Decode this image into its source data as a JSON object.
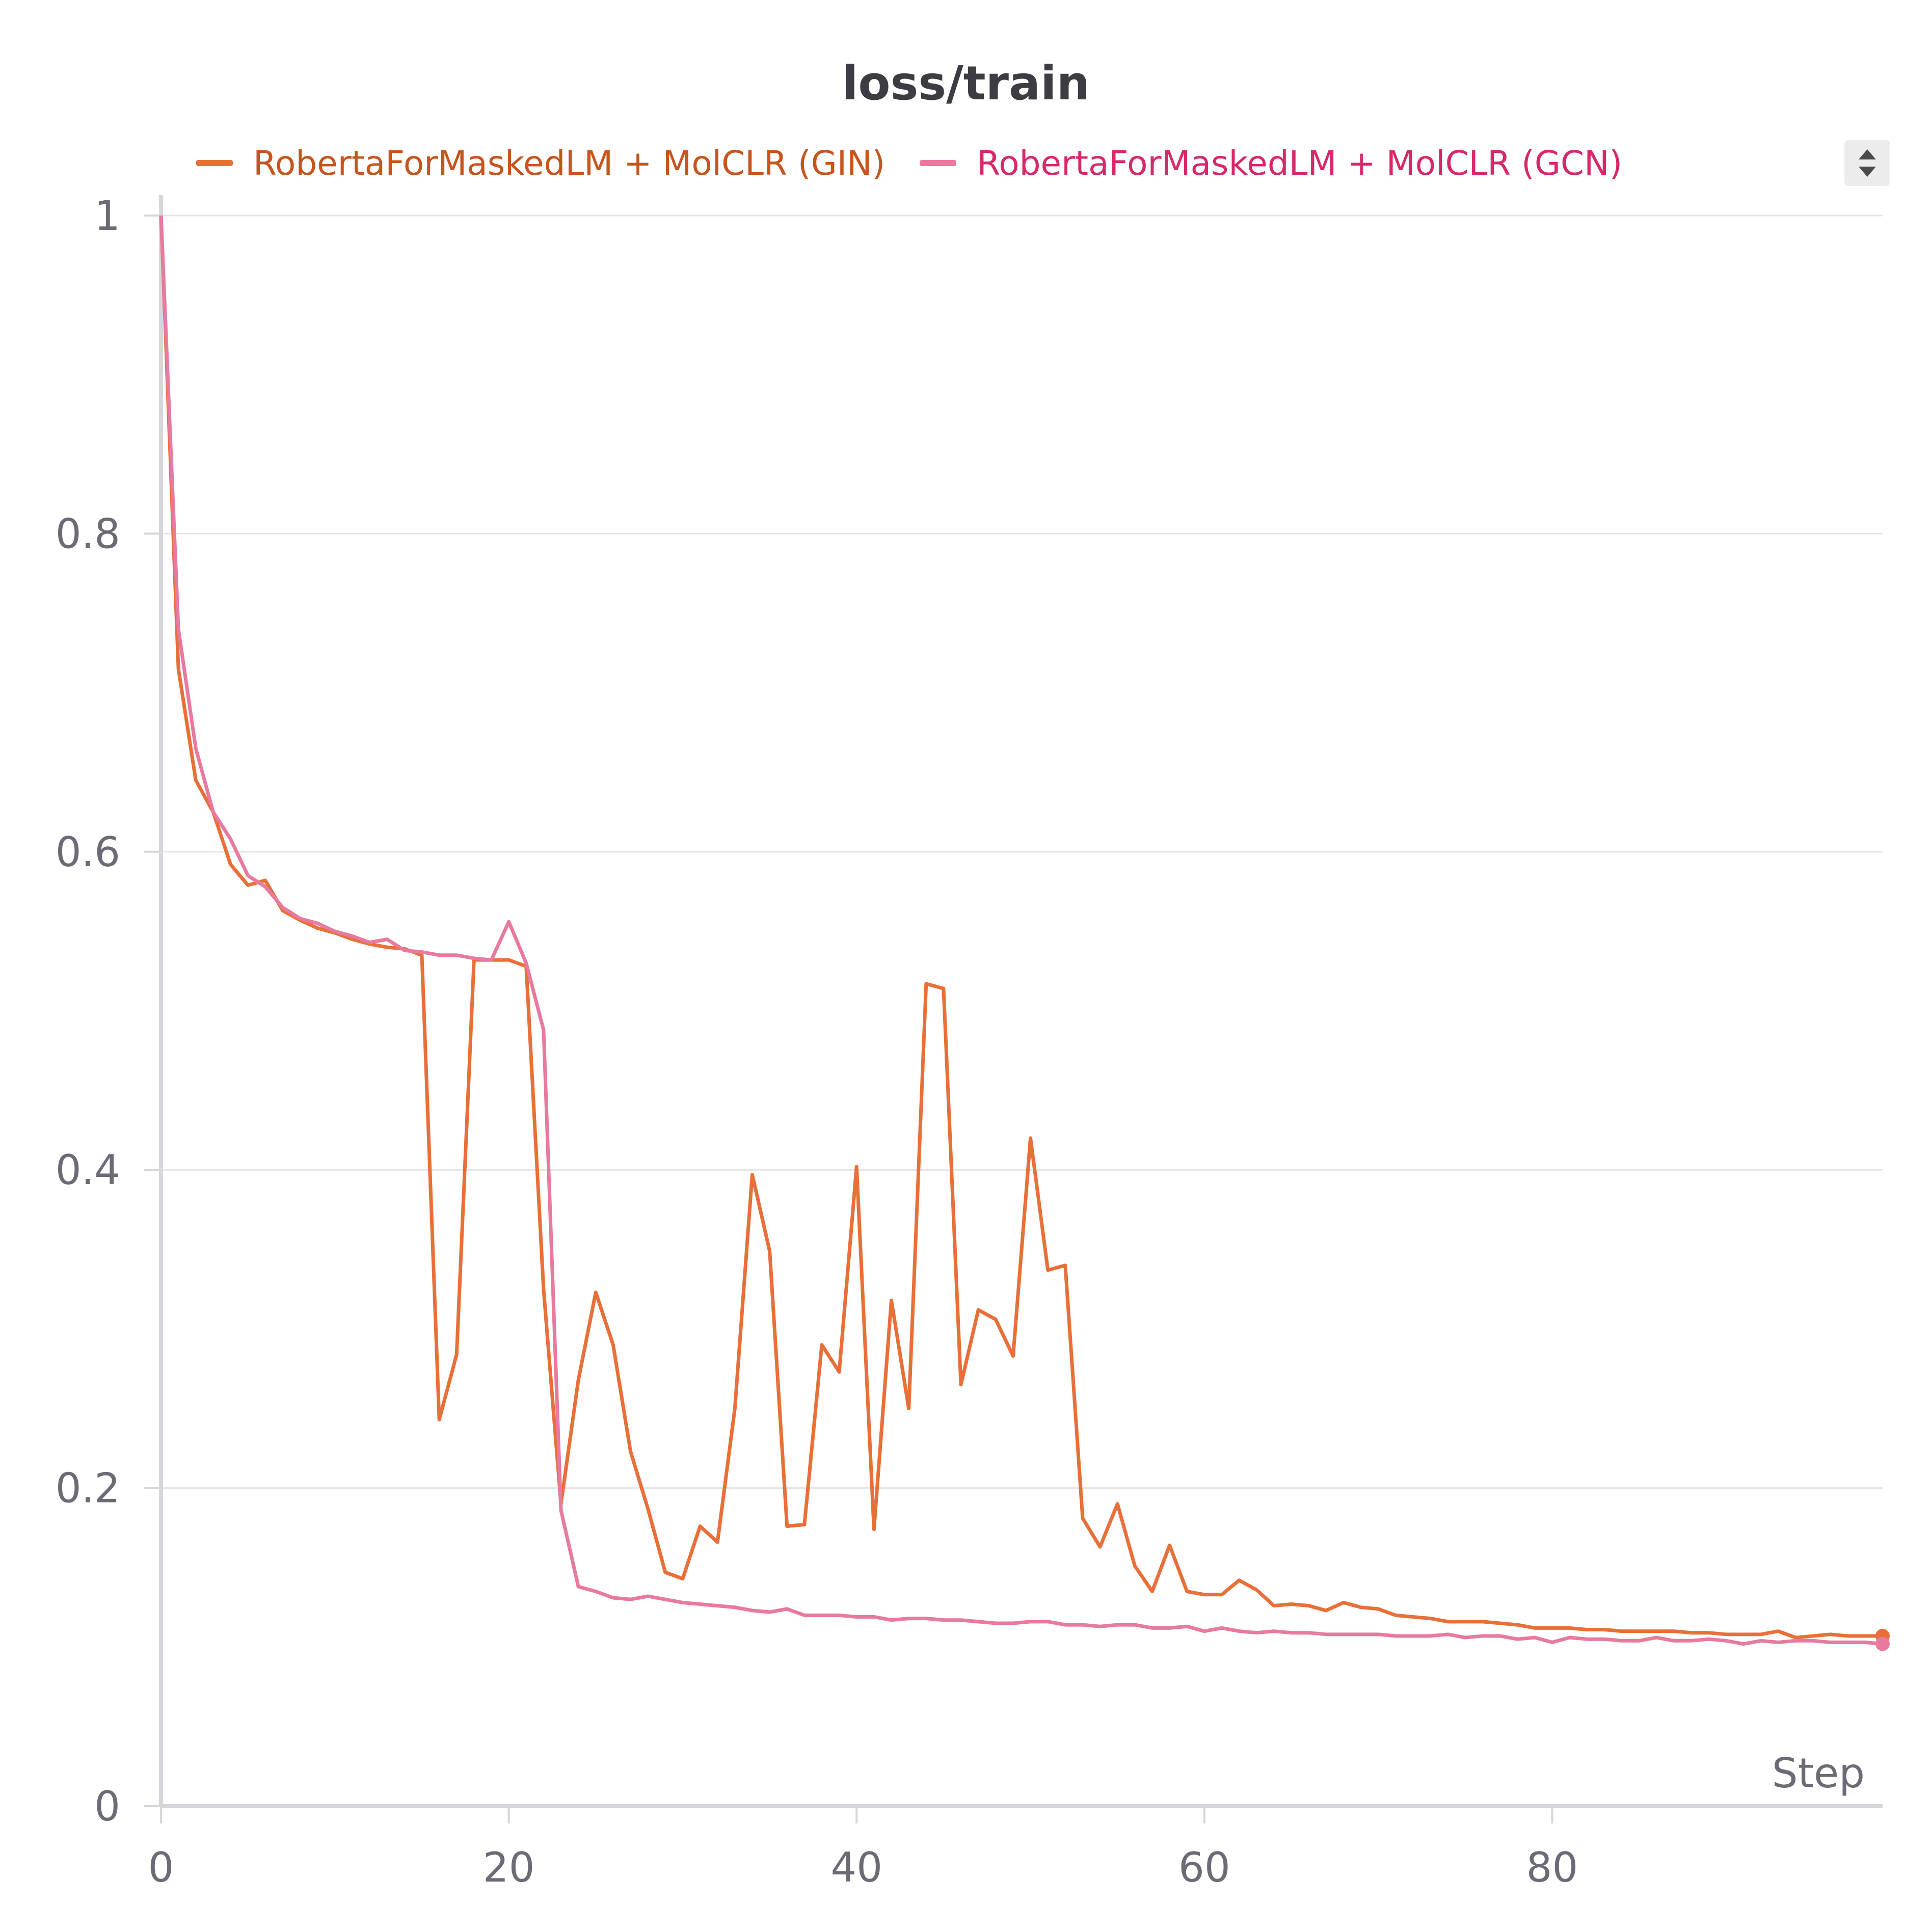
{
  "chart_data": {
    "type": "line",
    "title": "loss/train",
    "xlabel": "Step",
    "ylabel": "",
    "xlim": [
      0,
      99
    ],
    "ylim": [
      0,
      1
    ],
    "x_ticks": [
      "0",
      "20",
      "40",
      "60",
      "80"
    ],
    "x_tick_values": [
      0,
      20,
      40,
      60,
      80
    ],
    "y_ticks": [
      "0",
      "0.2",
      "0.4",
      "0.6",
      "0.8",
      "1"
    ],
    "y_tick_values": [
      0,
      0.2,
      0.4,
      0.6,
      0.8,
      1
    ],
    "grid": true,
    "legend_position": "top",
    "series": [
      {
        "name": "RobertaForMaskedLM + MolCLR (GIN)",
        "color": "#e87038",
        "label_color": "#c7541d",
        "values": [
          1.0,
          0.715,
          0.645,
          0.625,
          0.592,
          0.579,
          0.582,
          0.563,
          0.557,
          0.552,
          0.549,
          0.545,
          0.542,
          0.54,
          0.539,
          0.535,
          0.243,
          0.284,
          0.532,
          0.532,
          0.532,
          0.528,
          0.325,
          0.19,
          0.268,
          0.323,
          0.29,
          0.223,
          0.187,
          0.147,
          0.143,
          0.176,
          0.166,
          0.25,
          0.397,
          0.349,
          0.176,
          0.177,
          0.29,
          0.273,
          0.402,
          0.174,
          0.318,
          0.25,
          0.517,
          0.514,
          0.265,
          0.312,
          0.306,
          0.283,
          0.42,
          0.337,
          0.34,
          0.181,
          0.163,
          0.19,
          0.151,
          0.135,
          0.164,
          0.135,
          0.133,
          0.133,
          0.142,
          0.136,
          0.126,
          0.127,
          0.126,
          0.123,
          0.128,
          0.125,
          0.124,
          0.12,
          0.119,
          0.118,
          0.116,
          0.116,
          0.116,
          0.115,
          0.114,
          0.112,
          0.112,
          0.112,
          0.111,
          0.111,
          0.11,
          0.11,
          0.11,
          0.11,
          0.109,
          0.109,
          0.108,
          0.108,
          0.108,
          0.11,
          0.106,
          0.107,
          0.108,
          0.107,
          0.107,
          0.107
        ]
      },
      {
        "name": "RobertaForMaskedLM + MolCLR (GCN)",
        "color": "#e8799f",
        "label_color": "#d6286a",
        "values": [
          1.0,
          0.74,
          0.665,
          0.625,
          0.608,
          0.585,
          0.578,
          0.565,
          0.558,
          0.555,
          0.55,
          0.547,
          0.543,
          0.545,
          0.538,
          0.537,
          0.535,
          0.535,
          0.533,
          0.532,
          0.556,
          0.53,
          0.488,
          0.186,
          0.138,
          0.135,
          0.131,
          0.13,
          0.132,
          0.13,
          0.128,
          0.127,
          0.126,
          0.125,
          0.123,
          0.122,
          0.124,
          0.12,
          0.12,
          0.12,
          0.119,
          0.119,
          0.117,
          0.118,
          0.118,
          0.117,
          0.117,
          0.116,
          0.115,
          0.115,
          0.116,
          0.116,
          0.114,
          0.114,
          0.113,
          0.114,
          0.114,
          0.112,
          0.112,
          0.113,
          0.11,
          0.112,
          0.11,
          0.109,
          0.11,
          0.109,
          0.109,
          0.108,
          0.108,
          0.108,
          0.108,
          0.107,
          0.107,
          0.107,
          0.108,
          0.106,
          0.107,
          0.107,
          0.105,
          0.106,
          0.103,
          0.106,
          0.105,
          0.105,
          0.104,
          0.104,
          0.106,
          0.104,
          0.104,
          0.105,
          0.104,
          0.102,
          0.104,
          0.103,
          0.104,
          0.104,
          0.103,
          0.103,
          0.103,
          0.102
        ]
      }
    ]
  }
}
